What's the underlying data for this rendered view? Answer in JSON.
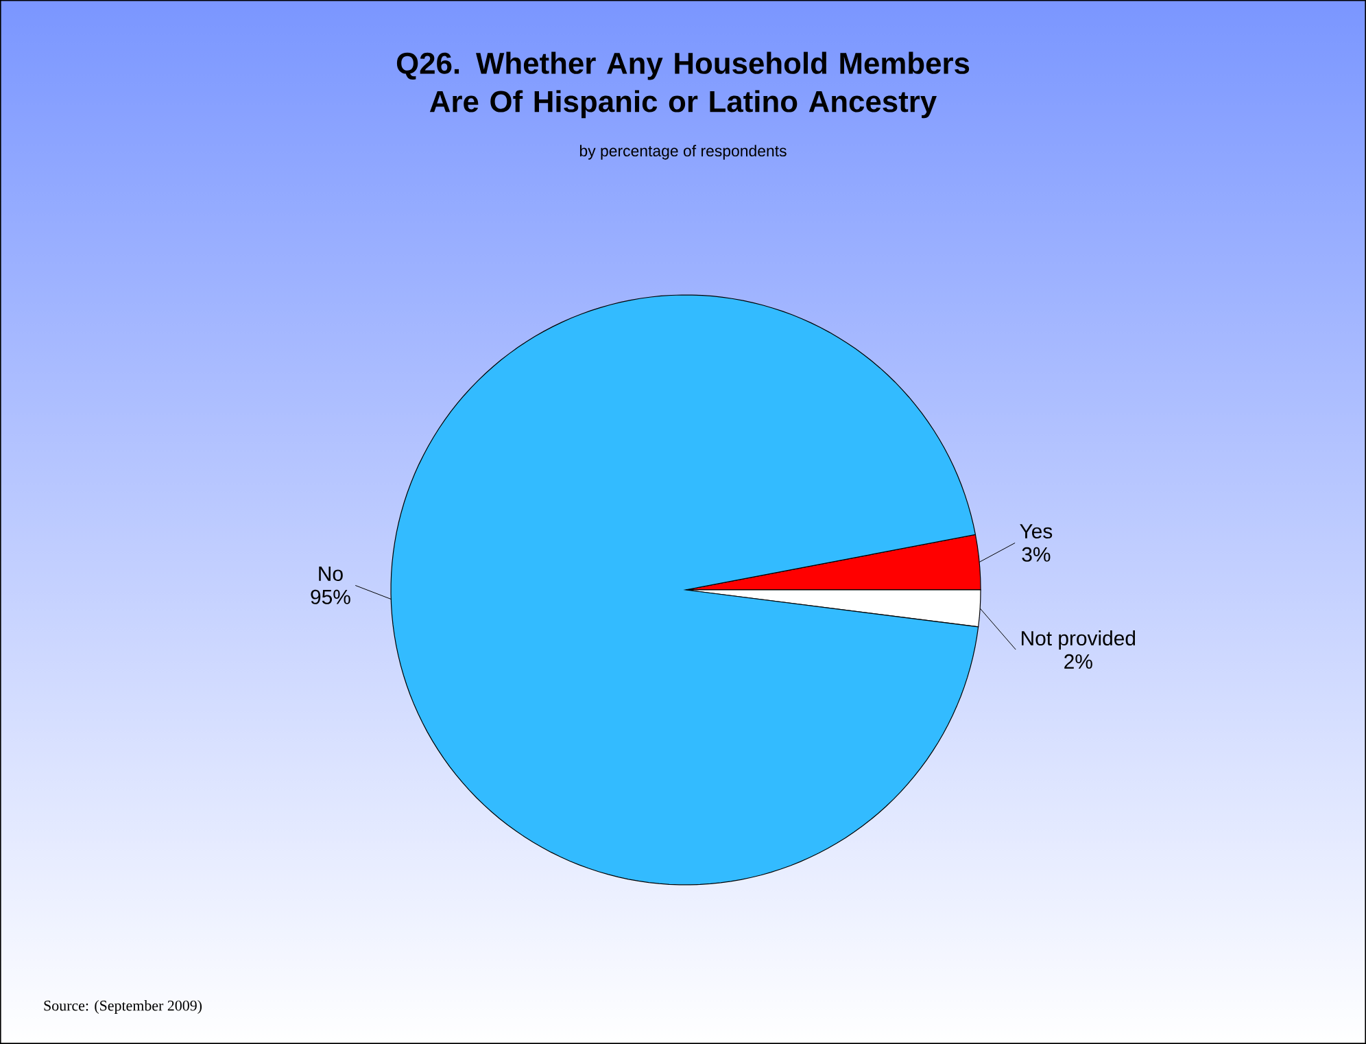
{
  "chart_data": {
    "type": "pie",
    "title": "Q26. Whether Any Household Members Are Of Hispanic or Latino Ancestry",
    "subtitle": "by percentage of respondents",
    "categories": [
      "Yes",
      "Not provided",
      "No"
    ],
    "values": [
      3,
      2,
      95
    ],
    "value_labels": [
      "3%",
      "2%",
      "95%"
    ],
    "colors": [
      "#ff0000",
      "#ffffff",
      "#33bbff"
    ],
    "annotations": [
      "Source: (September 2009)"
    ]
  }
}
